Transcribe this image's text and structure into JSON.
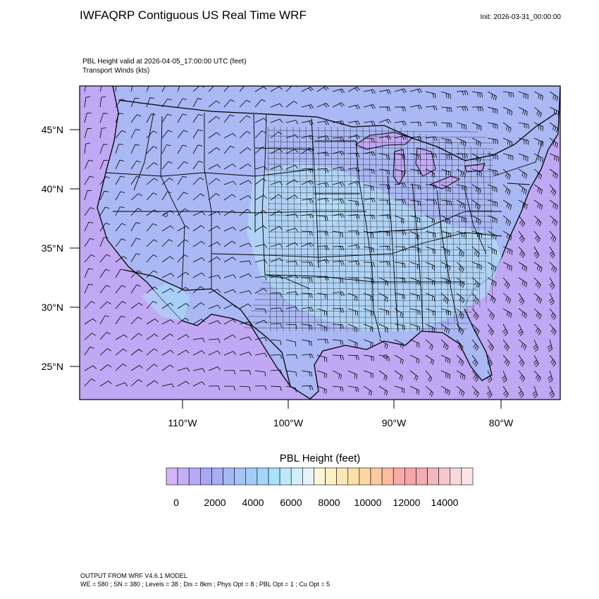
{
  "header": {
    "title": "IWFAQRP Contiguous US Real Time WRF",
    "init": "Init: 2026-03-31_00:00:00"
  },
  "map": {
    "field_label": "PBL Height valid at 2026-04-05_17:00:00 UTC   (feet)",
    "winds_label": "Transport Winds   (kts)",
    "lat_labels": [
      "45°N",
      "40°N",
      "35°N",
      "30°N",
      "25°N"
    ],
    "lon_labels": [
      "110°W",
      "100°W",
      "90°W",
      "80°W"
    ],
    "colors": {
      "ocean_lilac": "#c2a8f4",
      "land_blue": "#aab8f4",
      "interior_cyan": "#b0dcf6",
      "boundary": "#000000"
    }
  },
  "colorbar": {
    "title": "PBL Height  (feet)",
    "tick_labels": [
      "0",
      "2000",
      "4000",
      "6000",
      "8000",
      "10000",
      "12000",
      "14000"
    ],
    "colors": [
      "#d2b4f8",
      "#c4b0f8",
      "#b6aaf8",
      "#aaa6f6",
      "#a8aef4",
      "#a8b8f4",
      "#a6c2f6",
      "#a4ccf6",
      "#a4d6f8",
      "#a6e2fa",
      "#bce8fa",
      "#d2eefa",
      "#e6f4fa",
      "#fbf6d8",
      "#fbf0c4",
      "#fbe8b4",
      "#fbe0a8",
      "#fbd6a0",
      "#fbcaa0",
      "#fbbca2",
      "#f8aca6",
      "#f6a6a8",
      "#f2acb2",
      "#f2b8be",
      "#f4c8ce",
      "#f8d8dc",
      "#fbe4e6"
    ]
  },
  "footer": {
    "line1": "OUTPUT FROM WRF V4.6.1 MODEL",
    "line2": "WE = 580 ; SN = 380 ; Levels = 38 ; Dis = 8km ; Phys Opt = 8 ; PBL Opt = 1 ; Cu Opt = 5"
  }
}
